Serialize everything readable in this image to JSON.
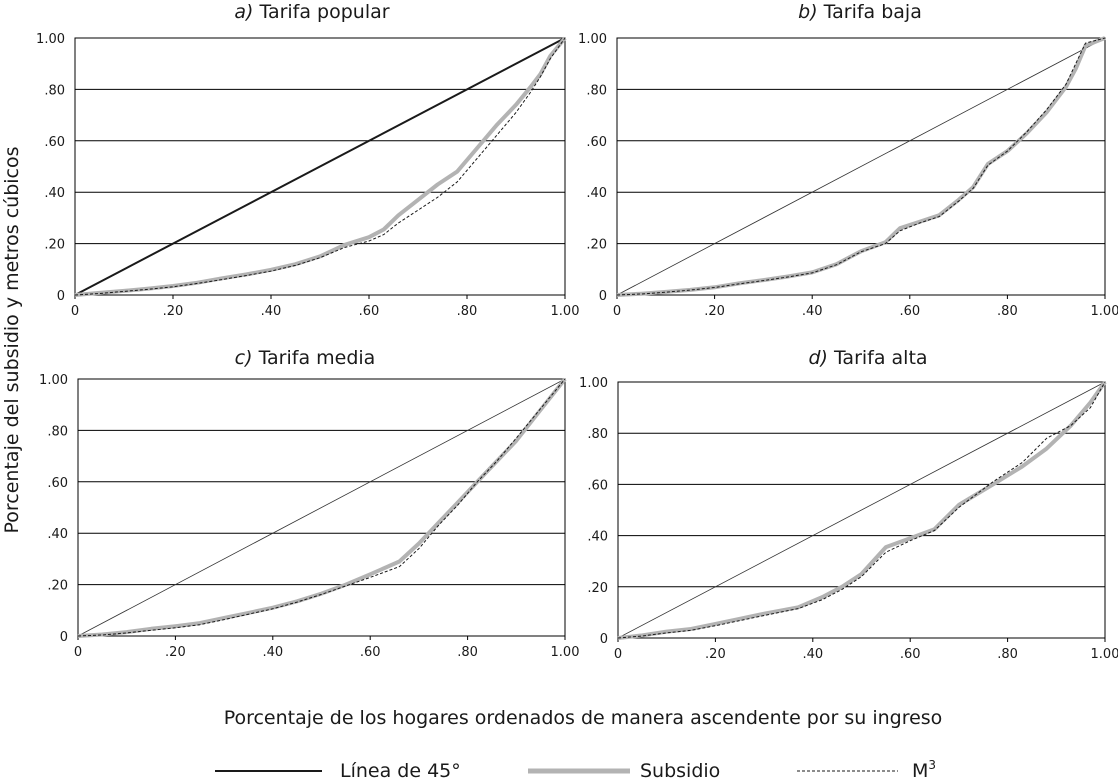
{
  "figure": {
    "ylabel": "Porcentaje del subsidio y metros cúbicos",
    "xlabel": "Porcentaje de los hogares ordenados de manera ascendente por su ingreso",
    "legend": [
      {
        "label": "Línea de 45°",
        "color": "#1a1a1a",
        "style": "solid-dark"
      },
      {
        "label": "Subsidio",
        "color": "#b3b3b3",
        "style": "thick-gray"
      },
      {
        "label": "M",
        "sup": "3",
        "color": "#1a1a1a",
        "style": "dashed"
      }
    ],
    "legend_placement": "bottom"
  },
  "chart_data": [
    {
      "type": "line",
      "title_prefix": "a)",
      "title": "Tarifa popular",
      "xlim": [
        0,
        1
      ],
      "ylim": [
        0,
        1
      ],
      "xticks": [
        "0",
        ".20",
        ".40",
        ".60",
        ".80",
        "1.00"
      ],
      "yticks": [
        "0",
        ".20",
        ".40",
        ".60",
        ".80",
        "1.00"
      ],
      "grid": "horizontal",
      "diag_style": "bold",
      "series": [
        {
          "name": "Subsidio",
          "x": [
            0,
            0.05,
            0.1,
            0.15,
            0.2,
            0.25,
            0.3,
            0.35,
            0.4,
            0.45,
            0.5,
            0.55,
            0.6,
            0.63,
            0.66,
            0.7,
            0.74,
            0.78,
            0.82,
            0.86,
            0.9,
            0.93,
            0.95,
            0.97,
            1.0
          ],
          "y": [
            0,
            0.008,
            0.016,
            0.025,
            0.035,
            0.048,
            0.065,
            0.08,
            0.098,
            0.12,
            0.15,
            0.195,
            0.225,
            0.255,
            0.31,
            0.37,
            0.43,
            0.48,
            0.57,
            0.66,
            0.74,
            0.81,
            0.86,
            0.93,
            1.0
          ]
        },
        {
          "name": "M",
          "x": [
            0,
            0.05,
            0.1,
            0.15,
            0.2,
            0.25,
            0.3,
            0.35,
            0.4,
            0.45,
            0.5,
            0.55,
            0.6,
            0.63,
            0.66,
            0.7,
            0.74,
            0.78,
            0.82,
            0.86,
            0.9,
            0.93,
            0.95,
            0.97,
            1.0
          ],
          "y": [
            0,
            0.006,
            0.014,
            0.022,
            0.032,
            0.045,
            0.06,
            0.076,
            0.093,
            0.115,
            0.145,
            0.185,
            0.21,
            0.235,
            0.28,
            0.33,
            0.38,
            0.44,
            0.53,
            0.62,
            0.71,
            0.79,
            0.85,
            0.92,
            1.0
          ]
        }
      ]
    },
    {
      "type": "line",
      "title_prefix": "b)",
      "title": "Tarifa baja",
      "xlim": [
        0,
        1
      ],
      "ylim": [
        0,
        1
      ],
      "xticks": [
        "0",
        ".20",
        ".40",
        ".60",
        ".80",
        "1.00"
      ],
      "yticks": [
        "0",
        ".20",
        ".40",
        ".60",
        ".80",
        "1.00"
      ],
      "grid": "horizontal",
      "diag_style": "thin",
      "series": [
        {
          "name": "Subsidio",
          "x": [
            0,
            0.05,
            0.1,
            0.15,
            0.2,
            0.25,
            0.3,
            0.35,
            0.4,
            0.45,
            0.48,
            0.5,
            0.55,
            0.58,
            0.62,
            0.66,
            0.7,
            0.73,
            0.76,
            0.8,
            0.84,
            0.88,
            0.92,
            0.94,
            0.96,
            1.0
          ],
          "y": [
            0,
            0.005,
            0.012,
            0.02,
            0.03,
            0.045,
            0.058,
            0.072,
            0.088,
            0.12,
            0.15,
            0.17,
            0.205,
            0.26,
            0.285,
            0.31,
            0.37,
            0.42,
            0.51,
            0.56,
            0.63,
            0.71,
            0.81,
            0.88,
            0.97,
            1.0
          ]
        },
        {
          "name": "M",
          "x": [
            0,
            0.05,
            0.1,
            0.15,
            0.2,
            0.25,
            0.3,
            0.35,
            0.4,
            0.45,
            0.48,
            0.5,
            0.55,
            0.58,
            0.62,
            0.66,
            0.7,
            0.73,
            0.76,
            0.8,
            0.84,
            0.88,
            0.92,
            0.94,
            0.96,
            1.0
          ],
          "y": [
            0,
            0.004,
            0.011,
            0.019,
            0.029,
            0.043,
            0.056,
            0.07,
            0.086,
            0.118,
            0.148,
            0.168,
            0.2,
            0.25,
            0.28,
            0.305,
            0.365,
            0.415,
            0.505,
            0.56,
            0.635,
            0.72,
            0.82,
            0.9,
            0.98,
            1.0
          ]
        }
      ]
    },
    {
      "type": "line",
      "title_prefix": "c)",
      "title": "Tarifa media",
      "xlim": [
        0,
        1
      ],
      "ylim": [
        0,
        1
      ],
      "xticks": [
        "0",
        ".20",
        ".40",
        ".60",
        ".80",
        "1.00"
      ],
      "yticks": [
        "0",
        ".20",
        ".40",
        ".60",
        ".80",
        "1.00"
      ],
      "grid": "horizontal",
      "diag_style": "thin",
      "series": [
        {
          "name": "Subsidio",
          "x": [
            0,
            0.05,
            0.1,
            0.15,
            0.2,
            0.25,
            0.3,
            0.35,
            0.4,
            0.45,
            0.5,
            0.55,
            0.6,
            0.66,
            0.7,
            0.74,
            0.78,
            0.82,
            0.86,
            0.9,
            0.95,
            1.0
          ],
          "y": [
            0,
            0.006,
            0.015,
            0.028,
            0.038,
            0.05,
            0.07,
            0.09,
            0.11,
            0.135,
            0.165,
            0.2,
            0.24,
            0.29,
            0.36,
            0.44,
            0.52,
            0.6,
            0.68,
            0.76,
            0.88,
            1.0
          ]
        },
        {
          "name": "M",
          "x": [
            0,
            0.05,
            0.1,
            0.15,
            0.2,
            0.25,
            0.3,
            0.35,
            0.4,
            0.45,
            0.5,
            0.55,
            0.6,
            0.66,
            0.7,
            0.74,
            0.78,
            0.82,
            0.86,
            0.9,
            0.95,
            1.0
          ],
          "y": [
            0,
            0.004,
            0.012,
            0.022,
            0.032,
            0.044,
            0.064,
            0.085,
            0.106,
            0.132,
            0.162,
            0.195,
            0.228,
            0.27,
            0.34,
            0.43,
            0.51,
            0.6,
            0.68,
            0.77,
            0.885,
            1.0
          ]
        }
      ]
    },
    {
      "type": "line",
      "title_prefix": "d)",
      "title": "Tarifa alta",
      "xlim": [
        0,
        1
      ],
      "ylim": [
        0,
        1
      ],
      "xticks": [
        "0",
        ".20",
        ".40",
        ".60",
        ".80",
        "1.00"
      ],
      "yticks": [
        "0",
        ".20",
        ".40",
        ".60",
        ".80",
        "1.00"
      ],
      "grid": "horizontal",
      "diag_style": "thin",
      "series": [
        {
          "name": "Subsidio",
          "x": [
            0,
            0.05,
            0.1,
            0.15,
            0.2,
            0.25,
            0.3,
            0.37,
            0.42,
            0.46,
            0.5,
            0.55,
            0.6,
            0.65,
            0.7,
            0.77,
            0.83,
            0.88,
            0.93,
            0.97,
            1.0
          ],
          "y": [
            0,
            0.01,
            0.025,
            0.035,
            0.055,
            0.075,
            0.095,
            0.12,
            0.16,
            0.2,
            0.25,
            0.355,
            0.39,
            0.425,
            0.52,
            0.6,
            0.67,
            0.74,
            0.83,
            0.92,
            1.0
          ]
        },
        {
          "name": "M",
          "x": [
            0,
            0.05,
            0.1,
            0.15,
            0.2,
            0.25,
            0.3,
            0.37,
            0.42,
            0.46,
            0.5,
            0.55,
            0.6,
            0.65,
            0.7,
            0.77,
            0.83,
            0.88,
            0.93,
            0.97,
            1.0
          ],
          "y": [
            0,
            0.008,
            0.02,
            0.03,
            0.048,
            0.068,
            0.088,
            0.115,
            0.15,
            0.19,
            0.24,
            0.335,
            0.38,
            0.42,
            0.51,
            0.61,
            0.685,
            0.78,
            0.83,
            0.9,
            1.0
          ]
        }
      ]
    }
  ]
}
